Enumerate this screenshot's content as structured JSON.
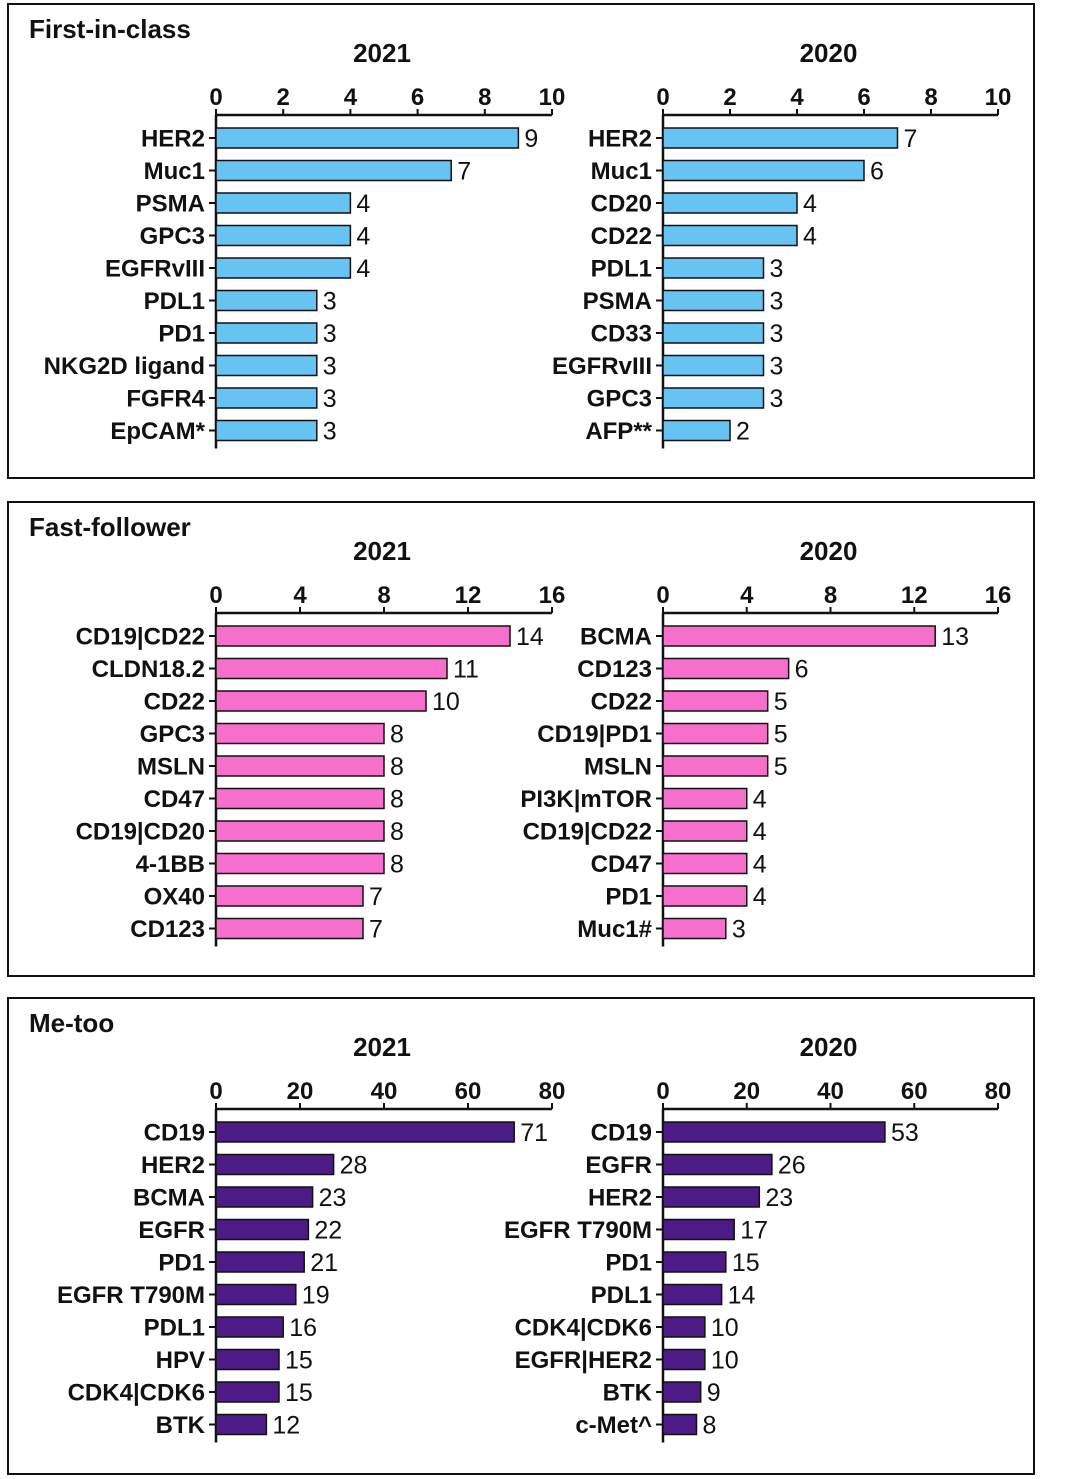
{
  "colors": {
    "first_in_class": "#66c3f2",
    "fast_follower": "#f76fcd",
    "me_too": "#4d1b86",
    "axis": "#111111",
    "bar_stroke": "#111111"
  },
  "chart_data": [
    {
      "panel": "First-in-class",
      "color": "#66c3f2",
      "charts": [
        {
          "type": "bar",
          "orientation": "horizontal",
          "title": "2021",
          "xlim": [
            0,
            10
          ],
          "ticks": [
            0,
            2,
            4,
            6,
            8,
            10
          ],
          "categories": [
            "HER2",
            "Muc1",
            "PSMA",
            "GPC3",
            "EGFRvIII",
            "PDL1",
            "PD1",
            "NKG2D ligand",
            "FGFR4",
            "EpCAM*"
          ],
          "values": [
            9,
            7,
            4,
            4,
            4,
            3,
            3,
            3,
            3,
            3
          ]
        },
        {
          "type": "bar",
          "orientation": "horizontal",
          "title": "2020",
          "xlim": [
            0,
            10
          ],
          "ticks": [
            0,
            2,
            4,
            6,
            8,
            10
          ],
          "categories": [
            "HER2",
            "Muc1",
            "CD20",
            "CD22",
            "PDL1",
            "PSMA",
            "CD33",
            "EGFRvIII",
            "GPC3",
            "AFP**"
          ],
          "values": [
            7,
            6,
            4,
            4,
            3,
            3,
            3,
            3,
            3,
            2
          ]
        }
      ]
    },
    {
      "panel": "Fast-follower",
      "color": "#f76fcd",
      "charts": [
        {
          "type": "bar",
          "orientation": "horizontal",
          "title": "2021",
          "xlim": [
            0,
            16
          ],
          "ticks": [
            0,
            4,
            8,
            12,
            16
          ],
          "categories": [
            "CD19|CD22",
            "CLDN18.2",
            "CD22",
            "GPC3",
            "MSLN",
            "CD47",
            "CD19|CD20",
            "4-1BB",
            "OX40",
            "CD123"
          ],
          "values": [
            14,
            11,
            10,
            8,
            8,
            8,
            8,
            8,
            7,
            7
          ]
        },
        {
          "type": "bar",
          "orientation": "horizontal",
          "title": "2020",
          "xlim": [
            0,
            16
          ],
          "ticks": [
            0,
            4,
            8,
            12,
            16
          ],
          "categories": [
            "BCMA",
            "CD123",
            "CD22",
            "CD19|PD1",
            "MSLN",
            "PI3K|mTOR",
            "CD19|CD22",
            "CD47",
            "PD1",
            "Muc1#"
          ],
          "values": [
            13,
            6,
            5,
            5,
            5,
            4,
            4,
            4,
            4,
            3
          ]
        }
      ]
    },
    {
      "panel": "Me-too",
      "color": "#4d1b86",
      "charts": [
        {
          "type": "bar",
          "orientation": "horizontal",
          "title": "2021",
          "xlim": [
            0,
            80
          ],
          "ticks": [
            0,
            20,
            40,
            60,
            80
          ],
          "categories": [
            "CD19",
            "HER2",
            "BCMA",
            "EGFR",
            "PD1",
            "EGFR T790M",
            "PDL1",
            "HPV",
            "CDK4|CDK6",
            "BTK"
          ],
          "values": [
            71,
            28,
            23,
            22,
            21,
            19,
            16,
            15,
            15,
            12
          ]
        },
        {
          "type": "bar",
          "orientation": "horizontal",
          "title": "2020",
          "xlim": [
            0,
            80
          ],
          "ticks": [
            0,
            20,
            40,
            60,
            80
          ],
          "categories": [
            "CD19",
            "EGFR",
            "HER2",
            "EGFR T790M",
            "PD1",
            "PDL1",
            "CDK4|CDK6",
            "EGFR|HER2",
            "BTK",
            "c-Met^"
          ],
          "values": [
            53,
            26,
            23,
            17,
            15,
            14,
            10,
            10,
            9,
            8
          ]
        }
      ]
    }
  ]
}
